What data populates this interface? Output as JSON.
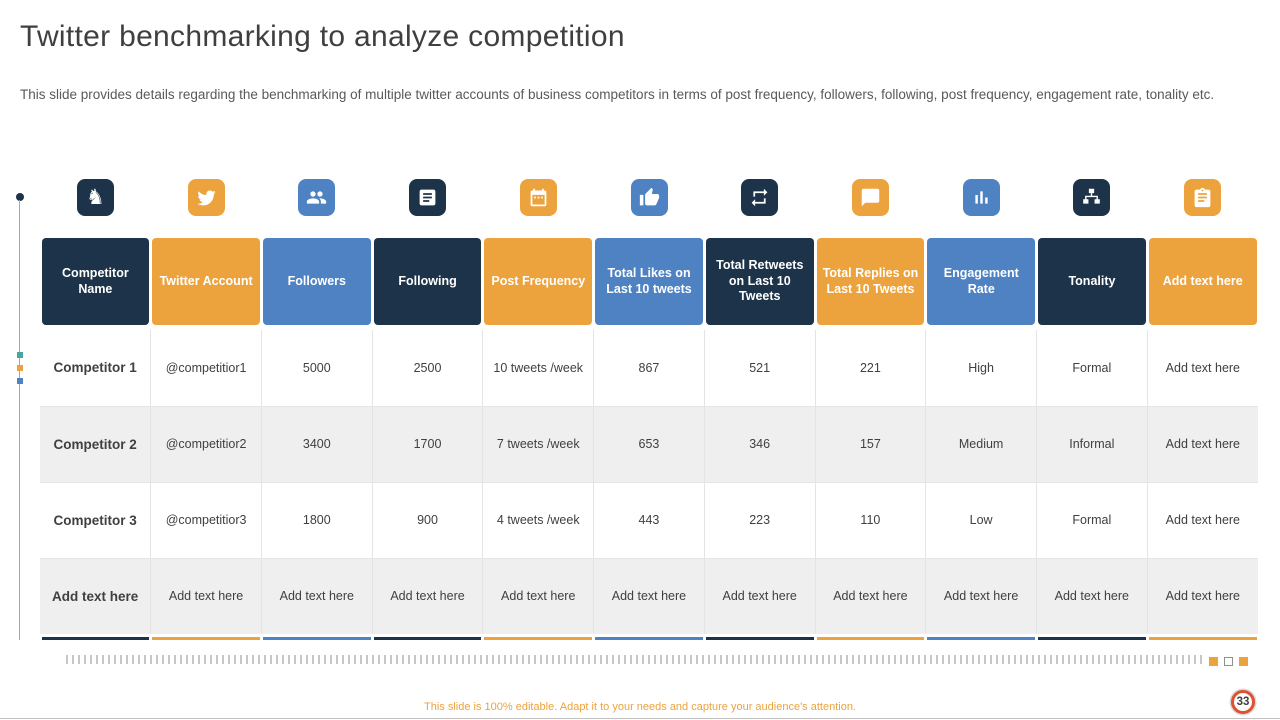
{
  "slide": {
    "title": "Twitter benchmarking to analyze competition",
    "subtitle": "This slide provides details regarding the benchmarking of multiple twitter accounts of business competitors in terms of post frequency, followers, following, post frequency, engagement rate, tonality etc.",
    "footer": "This slide is 100% editable. Adapt it to your needs and capture your audience's attention.",
    "page_number": "33"
  },
  "colors": {
    "navy": "#1d3349",
    "orange": "#eca33d",
    "blue": "#4e82c2",
    "row_alt": "#efefef",
    "badge_ring": "#dd5230"
  },
  "table": {
    "columns": [
      {
        "label": "Competitor Name",
        "color": "navy",
        "icon": "chess-knight-icon"
      },
      {
        "label": "Twitter Account",
        "color": "orange",
        "icon": "twitter-bird-icon"
      },
      {
        "label": "Followers",
        "color": "blue",
        "icon": "followers-icon"
      },
      {
        "label": "Following",
        "color": "navy",
        "icon": "news-icon"
      },
      {
        "label": "Post Frequency",
        "color": "orange",
        "icon": "calendar-icon"
      },
      {
        "label": "Total Likes on Last 10 tweets",
        "color": "blue",
        "icon": "thumbs-up-icon"
      },
      {
        "label": "Total Retweets on Last 10 Tweets",
        "color": "navy",
        "icon": "retweet-icon"
      },
      {
        "label": "Total Replies on Last 10 Tweets",
        "color": "orange",
        "icon": "reply-icon"
      },
      {
        "label": "Engagement Rate",
        "color": "blue",
        "icon": "bar-chart-icon"
      },
      {
        "label": "Tonality",
        "color": "navy",
        "icon": "people-network-icon"
      },
      {
        "label": "Add text here",
        "color": "orange",
        "icon": "clipboard-icon"
      }
    ],
    "rows": [
      [
        "Competitor 1",
        "@competitior1",
        "5000",
        "2500",
        "10 tweets /week",
        "867",
        "521",
        "221",
        "High",
        "Formal",
        "Add text here"
      ],
      [
        "Competitor 2",
        "@competitior2",
        "3400",
        "1700",
        "7 tweets /week",
        "653",
        "346",
        "157",
        "Medium",
        "Informal",
        "Add text here"
      ],
      [
        "Competitor 3",
        "@competitior3",
        "1800",
        "900",
        "4 tweets /week",
        "443",
        "223",
        "110",
        "Low",
        "Formal",
        "Add text here"
      ],
      [
        "Add text here",
        "Add text here",
        "Add text here",
        "Add text here",
        "Add text here",
        "Add text here",
        "Add text here",
        "Add text here",
        "Add text here",
        "Add text here",
        "Add text here"
      ]
    ]
  }
}
